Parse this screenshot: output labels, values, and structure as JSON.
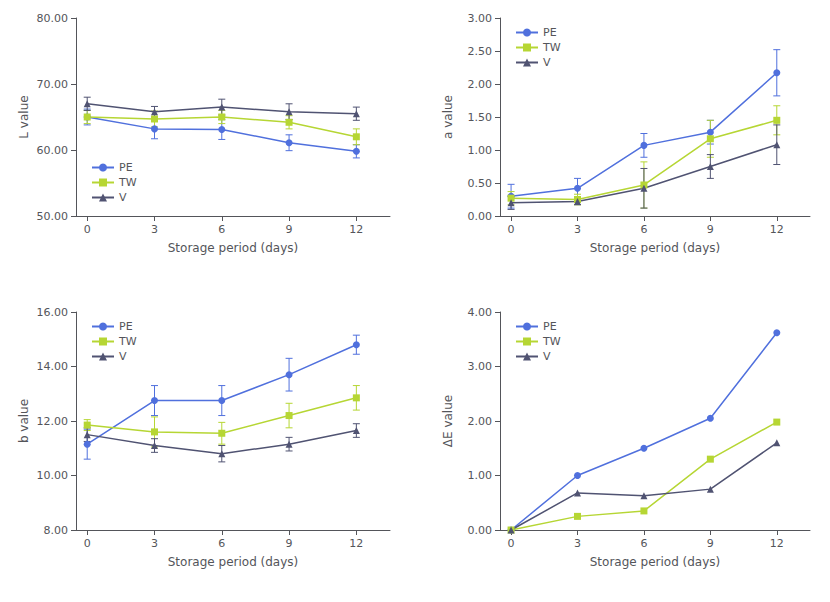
{
  "chart_data": [
    {
      "type": "line",
      "xlabel": "Storage period (days)",
      "ylabel": "L value",
      "x": [
        0,
        3,
        6,
        9,
        12
      ],
      "xlim": [
        -0.5,
        13.5
      ],
      "xticks": [
        0,
        3,
        6,
        9,
        12
      ],
      "ylim": [
        50.0,
        80.0
      ],
      "yticks": [
        {
          "value": 50.0,
          "label": "50.00"
        },
        {
          "value": 60.0,
          "label": "60.00"
        },
        {
          "value": 70.0,
          "label": "70.00"
        },
        {
          "value": 80.0,
          "label": "80.00"
        }
      ],
      "grid": false,
      "legend": "lower left",
      "series": [
        {
          "name": "PE",
          "marker": "circle",
          "values": [
            65.0,
            63.2,
            63.1,
            61.1,
            59.8
          ],
          "errors": [
            1.2,
            1.5,
            1.5,
            1.2,
            1.0
          ]
        },
        {
          "name": "TW",
          "marker": "square",
          "values": [
            65.0,
            64.7,
            65.0,
            64.2,
            62.0
          ],
          "errors": [
            1.0,
            1.2,
            1.0,
            1.0,
            1.2
          ]
        },
        {
          "name": "V",
          "marker": "triangle",
          "values": [
            67.0,
            65.8,
            66.5,
            65.8,
            65.5
          ],
          "errors": [
            1.0,
            0.8,
            1.2,
            1.2,
            1.0
          ]
        }
      ]
    },
    {
      "type": "line",
      "xlabel": "Storage period (days)",
      "ylabel": "a value",
      "x": [
        0,
        3,
        6,
        9,
        12
      ],
      "xlim": [
        -0.5,
        13.5
      ],
      "xticks": [
        0,
        3,
        6,
        9,
        12
      ],
      "ylim": [
        0.0,
        3.0
      ],
      "yticks": [
        {
          "value": 0.0,
          "label": "0.00"
        },
        {
          "value": 0.5,
          "label": "0.50"
        },
        {
          "value": 1.0,
          "label": "1.00"
        },
        {
          "value": 1.5,
          "label": "1.50"
        },
        {
          "value": 2.0,
          "label": "2.00"
        },
        {
          "value": 2.5,
          "label": "2.50"
        },
        {
          "value": 3.0,
          "label": "3.00"
        }
      ],
      "grid": false,
      "legend": "upper left",
      "series": [
        {
          "name": "PE",
          "marker": "circle",
          "values": [
            0.3,
            0.42,
            1.07,
            1.27,
            2.17
          ],
          "errors": [
            0.18,
            0.15,
            0.18,
            0.18,
            0.35
          ]
        },
        {
          "name": "TW",
          "marker": "square",
          "values": [
            0.27,
            0.25,
            0.47,
            1.17,
            1.45
          ],
          "errors": [
            0.1,
            0.08,
            0.35,
            0.28,
            0.22
          ]
        },
        {
          "name": "V",
          "marker": "triangle",
          "values": [
            0.2,
            0.22,
            0.42,
            0.75,
            1.08
          ],
          "errors": [
            0.1,
            0.05,
            0.3,
            0.18,
            0.3
          ]
        }
      ]
    },
    {
      "type": "line",
      "xlabel": "Storage period (days)",
      "ylabel": "b value",
      "x": [
        0,
        3,
        6,
        9,
        12
      ],
      "xlim": [
        -0.5,
        13.5
      ],
      "xticks": [
        0,
        3,
        6,
        9,
        12
      ],
      "ylim": [
        8.0,
        16.0
      ],
      "yticks": [
        {
          "value": 8.0,
          "label": "8.00"
        },
        {
          "value": 10.0,
          "label": "10.00"
        },
        {
          "value": 12.0,
          "label": "12.00"
        },
        {
          "value": 14.0,
          "label": "14.00"
        },
        {
          "value": 16.0,
          "label": "16.00"
        }
      ],
      "grid": false,
      "legend": "upper left",
      "series": [
        {
          "name": "PE",
          "marker": "circle",
          "values": [
            11.15,
            12.75,
            12.75,
            13.7,
            14.8
          ],
          "errors": [
            0.55,
            0.55,
            0.55,
            0.6,
            0.35
          ]
        },
        {
          "name": "TW",
          "marker": "square",
          "values": [
            11.85,
            11.6,
            11.55,
            12.2,
            12.85
          ],
          "errors": [
            0.2,
            0.55,
            0.4,
            0.45,
            0.45
          ]
        },
        {
          "name": "V",
          "marker": "triangle",
          "values": [
            11.5,
            11.1,
            10.8,
            11.15,
            11.65
          ],
          "errors": [
            0.25,
            0.25,
            0.3,
            0.25,
            0.25
          ]
        }
      ]
    },
    {
      "type": "line",
      "xlabel": "Storage period (days)",
      "ylabel": "ΔE value",
      "x": [
        0,
        3,
        6,
        9,
        12
      ],
      "xlim": [
        -0.5,
        13.5
      ],
      "xticks": [
        0,
        3,
        6,
        9,
        12
      ],
      "ylim": [
        0.0,
        4.0
      ],
      "yticks": [
        {
          "value": 0.0,
          "label": "0.00"
        },
        {
          "value": 1.0,
          "label": "1.00"
        },
        {
          "value": 2.0,
          "label": "2.00"
        },
        {
          "value": 3.0,
          "label": "3.00"
        },
        {
          "value": 4.0,
          "label": "4.00"
        }
      ],
      "grid": false,
      "legend": "upper left",
      "series": [
        {
          "name": "PE",
          "marker": "circle",
          "values": [
            0.0,
            1.0,
            1.5,
            2.05,
            3.62
          ]
        },
        {
          "name": "TW",
          "marker": "square",
          "values": [
            0.0,
            0.25,
            0.35,
            1.3,
            1.98
          ]
        },
        {
          "name": "V",
          "marker": "triangle",
          "values": [
            0.0,
            0.68,
            0.63,
            0.75,
            1.6
          ]
        }
      ]
    }
  ]
}
